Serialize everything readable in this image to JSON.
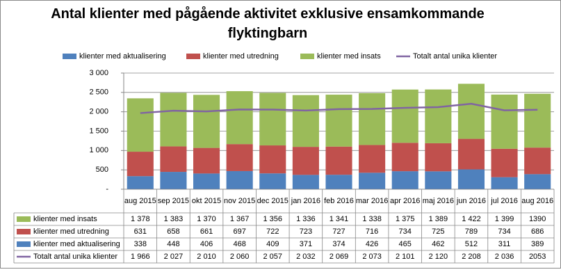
{
  "chart_data": {
    "type": "bar",
    "stacked": true,
    "title": "Antal klienter med pågående aktivitet exklusive ensamkommande flyktingbarn",
    "categories": [
      "aug 2015",
      "sep 2015",
      "okt 2015",
      "nov 2015",
      "dec 2015",
      "jan 2016",
      "feb 2016",
      "mar 2016",
      "apr 2016",
      "maj 2016",
      "jun 2016",
      "jul 2016",
      "aug 2016"
    ],
    "series": [
      {
        "name": "klienter med aktualisering",
        "color": "#4f81bd",
        "type": "bar",
        "values": [
          338,
          448,
          406,
          468,
          409,
          371,
          374,
          426,
          465,
          462,
          512,
          311,
          389
        ]
      },
      {
        "name": "klienter med utredning",
        "color": "#c0504d",
        "type": "bar",
        "values": [
          631,
          658,
          661,
          697,
          722,
          723,
          727,
          716,
          734,
          725,
          789,
          734,
          686
        ]
      },
      {
        "name": "klienter med insats",
        "color": "#9bbb59",
        "type": "bar",
        "values": [
          1378,
          1383,
          1370,
          1367,
          1356,
          1336,
          1341,
          1338,
          1375,
          1389,
          1422,
          1399,
          1390
        ],
        "value_labels": [
          "1 378",
          "1 383",
          "1 370",
          "1 367",
          "1 356",
          "1 336",
          "1 341",
          "1 338",
          "1 375",
          "1 389",
          "1 422",
          "1 399",
          "1390"
        ]
      },
      {
        "name": "Totalt antal unika klienter",
        "color": "#8064a2",
        "type": "line",
        "values": [
          1966,
          2027,
          2010,
          2060,
          2057,
          2032,
          2069,
          2073,
          2101,
          2120,
          2208,
          2036,
          2053
        ],
        "value_labels": [
          "1 966",
          "2 027",
          "2 010",
          "2 060",
          "2 057",
          "2 032",
          "2 069",
          "2 073",
          "2 101",
          "2 120",
          "2 208",
          "2 036",
          "2053"
        ]
      }
    ],
    "ylim": [
      0,
      3000
    ],
    "yticks": [
      {
        "value": 0,
        "label": "-"
      },
      500,
      {
        "value": 1000,
        "label": "1 000"
      },
      {
        "value": 1500,
        "label": "1 500"
      },
      {
        "value": 2000,
        "label": "2 000"
      },
      {
        "value": 2500,
        "label": "2 500"
      },
      {
        "value": 3000,
        "label": "3 000"
      }
    ],
    "grid": true
  }
}
